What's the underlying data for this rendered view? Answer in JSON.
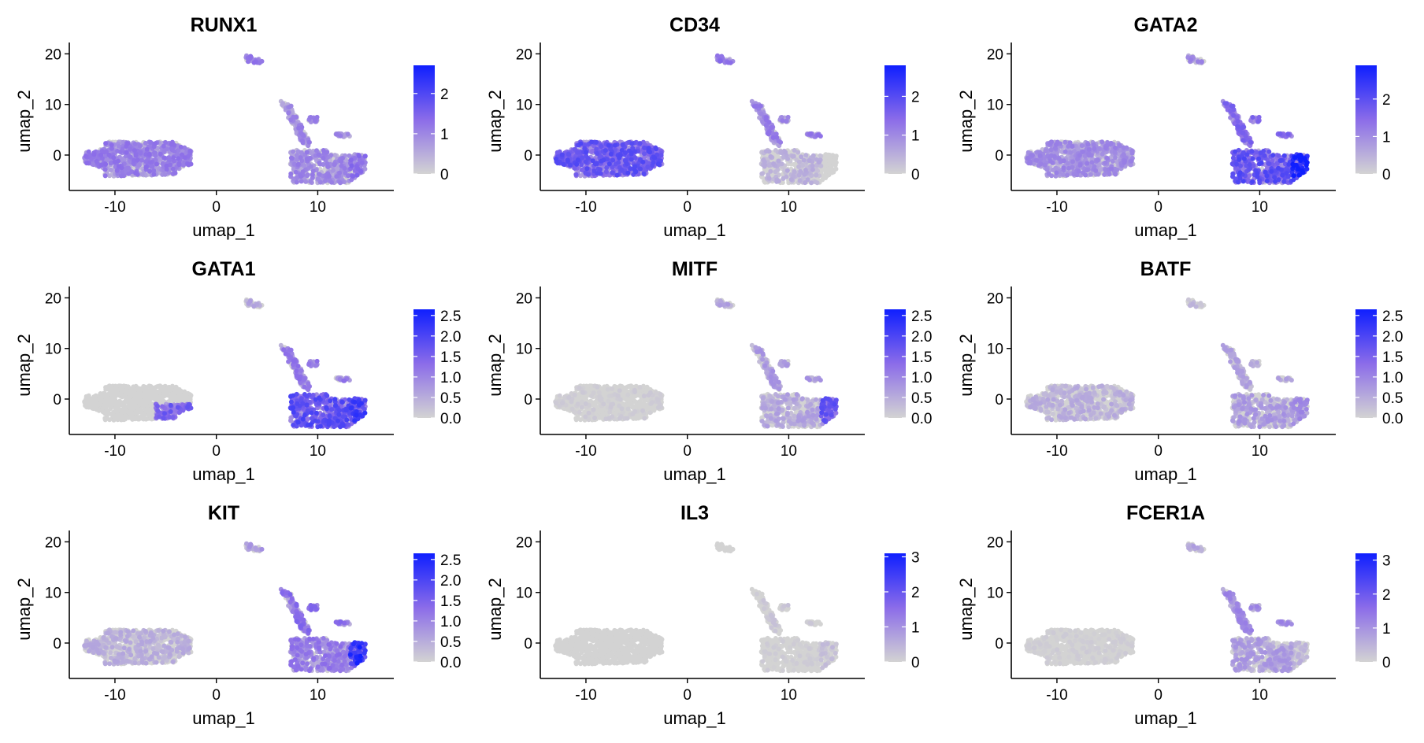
{
  "colors": {
    "low": "#d3d3d3",
    "high": "#0f1fff",
    "mid_purple": "#8b6ce9",
    "axis": "#000000",
    "background": "#ffffff"
  },
  "chart_data": [
    {
      "type": "scatter",
      "title": "RUNX1",
      "xlabel": "umap_1",
      "ylabel": "umap_2",
      "xticks": [
        -10,
        0,
        10
      ],
      "yticks": [
        0,
        10,
        20
      ],
      "xlim": [
        -14.5,
        17.5
      ],
      "ylim": [
        -7,
        21
      ],
      "color_scale": {
        "min": 0,
        "max": 2.7,
        "ticks": [
          0,
          1,
          2
        ],
        "tick_labels": [
          "0",
          "1",
          "2"
        ]
      },
      "expression_by_region": {
        "left_cluster": 0.9,
        "upper_cluster": 0.9,
        "right_stream": 0.8,
        "right_bottom": 0.8,
        "right_tip": 1.0
      }
    },
    {
      "type": "scatter",
      "title": "CD34",
      "xlabel": "umap_1",
      "ylabel": "umap_2",
      "xticks": [
        -10,
        0,
        10
      ],
      "yticks": [
        0,
        10,
        20
      ],
      "xlim": [
        -14.5,
        17.5
      ],
      "ylim": [
        -7,
        21
      ],
      "color_scale": {
        "min": 0,
        "max": 2.8,
        "ticks": [
          0,
          1,
          2
        ],
        "tick_labels": [
          "0",
          "1",
          "2"
        ]
      },
      "expression_by_region": {
        "left_cluster": 1.4,
        "upper_cluster": 1.0,
        "right_stream": 0.9,
        "right_bottom": 0.4,
        "right_tip": 0.0
      }
    },
    {
      "type": "scatter",
      "title": "GATA2",
      "xlabel": "umap_1",
      "ylabel": "umap_2",
      "xticks": [
        -10,
        0,
        10
      ],
      "yticks": [
        0,
        10,
        20
      ],
      "xlim": [
        -14.5,
        17.5
      ],
      "ylim": [
        -7,
        21
      ],
      "color_scale": {
        "min": 0,
        "max": 2.9,
        "ticks": [
          0,
          1,
          2
        ],
        "tick_labels": [
          "0",
          "1",
          "2"
        ]
      },
      "expression_by_region": {
        "left_cluster": 0.8,
        "upper_cluster": 0.8,
        "right_stream": 1.2,
        "right_bottom": 1.5,
        "right_tip": 2.2
      }
    },
    {
      "type": "scatter",
      "title": "GATA1",
      "xlabel": "umap_1",
      "ylabel": "umap_2",
      "xticks": [
        -10,
        0,
        10
      ],
      "yticks": [
        0,
        10,
        20
      ],
      "xlim": [
        -14.5,
        17.5
      ],
      "ylim": [
        -7,
        21
      ],
      "color_scale": {
        "min": 0,
        "max": 2.65,
        "ticks": [
          0,
          0.5,
          1,
          1.5,
          2,
          2.5
        ],
        "tick_labels": [
          "0.0",
          "0.5",
          "1.0",
          "1.5",
          "2.0",
          "2.5"
        ]
      },
      "expression_by_region": {
        "left_cluster": 0.0,
        "left_right_edge": 1.2,
        "upper_cluster": 0.5,
        "right_stream": 0.9,
        "right_bottom": 1.4,
        "right_tip": 1.6
      }
    },
    {
      "type": "scatter",
      "title": "MITF",
      "xlabel": "umap_1",
      "ylabel": "umap_2",
      "xticks": [
        -10,
        0,
        10
      ],
      "yticks": [
        0,
        10,
        20
      ],
      "xlim": [
        -14.5,
        17.5
      ],
      "ylim": [
        -7,
        21
      ],
      "color_scale": {
        "min": 0,
        "max": 2.65,
        "ticks": [
          0,
          0.5,
          1,
          1.5,
          2,
          2.5
        ],
        "tick_labels": [
          "0.0",
          "0.5",
          "1.0",
          "1.5",
          "2.0",
          "2.5"
        ]
      },
      "expression_by_region": {
        "left_cluster": 0.1,
        "upper_cluster": 0.5,
        "right_stream": 0.6,
        "right_bottom": 0.5,
        "right_tip": 1.3
      }
    },
    {
      "type": "scatter",
      "title": "BATF",
      "xlabel": "umap_1",
      "ylabel": "umap_2",
      "xticks": [
        -10,
        0,
        10
      ],
      "yticks": [
        0,
        10,
        20
      ],
      "xlim": [
        -14.5,
        17.5
      ],
      "ylim": [
        -7,
        21
      ],
      "color_scale": {
        "min": 0,
        "max": 2.65,
        "ticks": [
          0,
          0.5,
          1,
          1.5,
          2,
          2.5
        ],
        "tick_labels": [
          "0.0",
          "0.5",
          "1.0",
          "1.5",
          "2.0",
          "2.5"
        ]
      },
      "expression_by_region": {
        "left_cluster": 0.4,
        "upper_cluster": 0.3,
        "right_stream": 0.5,
        "right_bottom": 0.6,
        "right_tip": 0.7
      }
    },
    {
      "type": "scatter",
      "title": "KIT",
      "xlabel": "umap_1",
      "ylabel": "umap_2",
      "xticks": [
        -10,
        0,
        10
      ],
      "yticks": [
        0,
        10,
        20
      ],
      "xlim": [
        -14.5,
        17.5
      ],
      "ylim": [
        -7,
        21
      ],
      "color_scale": {
        "min": 0,
        "max": 2.65,
        "ticks": [
          0,
          0.5,
          1,
          1.5,
          2,
          2.5
        ],
        "tick_labels": [
          "0.0",
          "0.5",
          "1.0",
          "1.5",
          "2.0",
          "2.5"
        ]
      },
      "expression_by_region": {
        "left_cluster": 0.4,
        "upper_cluster": 0.6,
        "right_stream": 1.0,
        "right_bottom": 0.9,
        "right_tip": 1.8
      }
    },
    {
      "type": "scatter",
      "title": "IL3",
      "xlabel": "umap_1",
      "ylabel": "umap_2",
      "xticks": [
        -10,
        0,
        10
      ],
      "yticks": [
        0,
        10,
        20
      ],
      "xlim": [
        -14.5,
        17.5
      ],
      "ylim": [
        -7,
        21
      ],
      "color_scale": {
        "min": 0,
        "max": 3.1,
        "ticks": [
          0,
          1,
          2,
          3
        ],
        "tick_labels": [
          "0",
          "1",
          "2",
          "3"
        ]
      },
      "expression_by_region": {
        "left_cluster": 0.0,
        "upper_cluster": 0.0,
        "right_stream": 0.2,
        "right_bottom": 0.1,
        "right_tip": 0.3
      }
    },
    {
      "type": "scatter",
      "title": "FCER1A",
      "xlabel": "umap_1",
      "ylabel": "umap_2",
      "xticks": [
        -10,
        0,
        10
      ],
      "yticks": [
        0,
        10,
        20
      ],
      "xlim": [
        -14.5,
        17.5
      ],
      "ylim": [
        -7,
        21
      ],
      "color_scale": {
        "min": 0,
        "max": 3.2,
        "ticks": [
          0,
          1,
          2,
          3
        ],
        "tick_labels": [
          "0",
          "1",
          "2",
          "3"
        ]
      },
      "expression_by_region": {
        "left_cluster": 0.1,
        "upper_cluster": 0.6,
        "right_stream": 0.9,
        "right_bottom": 0.7,
        "right_tip": 0.4
      }
    }
  ]
}
